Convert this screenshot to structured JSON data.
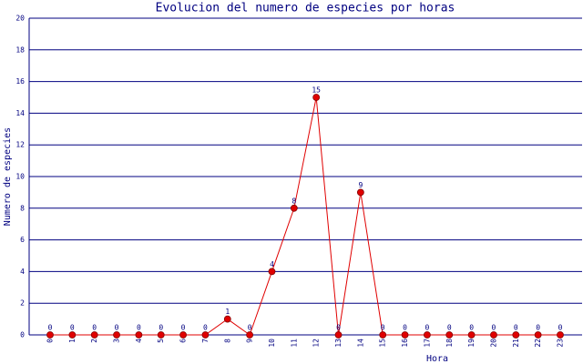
{
  "chart_data": {
    "type": "line",
    "title": "Evolucion del numero de especies por horas",
    "x_label": "Hora",
    "y_label": "Numero de especies",
    "categories": [
      "0",
      "1",
      "2",
      "3",
      "4",
      "5",
      "6",
      "7",
      "8",
      "9",
      "10",
      "11",
      "12",
      "13",
      "14",
      "15",
      "16",
      "17",
      "18",
      "19",
      "20",
      "21",
      "22",
      "23"
    ],
    "values": [
      0,
      0,
      0,
      0,
      0,
      0,
      0,
      0,
      1,
      0,
      4,
      8,
      15,
      0,
      9,
      0,
      0,
      0,
      0,
      0,
      0,
      0,
      0,
      0
    ],
    "color": "#e00000",
    "ylim": [
      0,
      20
    ],
    "yticks": [
      0,
      2,
      4,
      6,
      8,
      10,
      12,
      14,
      16,
      18,
      20
    ],
    "grid": true
  }
}
